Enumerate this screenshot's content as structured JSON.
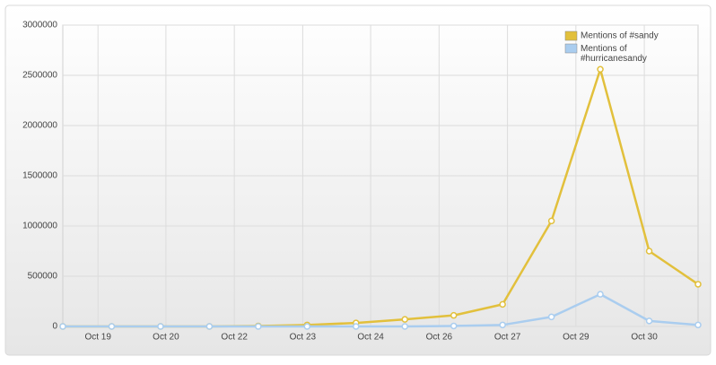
{
  "chart_data": {
    "type": "line",
    "x": [
      0,
      1,
      2,
      3,
      4,
      5,
      6,
      7,
      8,
      9,
      10,
      11,
      12,
      13
    ],
    "xlim": [
      0,
      13
    ],
    "xticks": [
      {
        "value": 0.72,
        "label": "Oct 19"
      },
      {
        "value": 2.11,
        "label": "Oct 20"
      },
      {
        "value": 3.51,
        "label": "Oct 22"
      },
      {
        "value": 4.91,
        "label": "Oct 23"
      },
      {
        "value": 6.3,
        "label": "Oct 24"
      },
      {
        "value": 7.7,
        "label": "Oct 26"
      },
      {
        "value": 9.1,
        "label": "Oct 27"
      },
      {
        "value": 10.5,
        "label": "Oct 29"
      },
      {
        "value": 11.9,
        "label": "Oct 30"
      }
    ],
    "ylim": [
      0,
      3000000
    ],
    "yticks": [
      0,
      500000,
      1000000,
      1500000,
      2000000,
      2500000,
      3000000
    ],
    "grid": true,
    "legend": "top-right",
    "series": [
      {
        "name": "Mentions of #sandy",
        "color": "#e2c03c",
        "values": [
          0,
          0,
          0,
          0,
          5000,
          15000,
          35000,
          70000,
          110000,
          220000,
          1050000,
          2560000,
          750000,
          420000
        ]
      },
      {
        "name": "Mentions of #hurricanesandy",
        "color": "#aacdef",
        "values": [
          0,
          0,
          0,
          0,
          0,
          0,
          0,
          0,
          5000,
          15000,
          95000,
          320000,
          55000,
          15000
        ]
      }
    ]
  }
}
